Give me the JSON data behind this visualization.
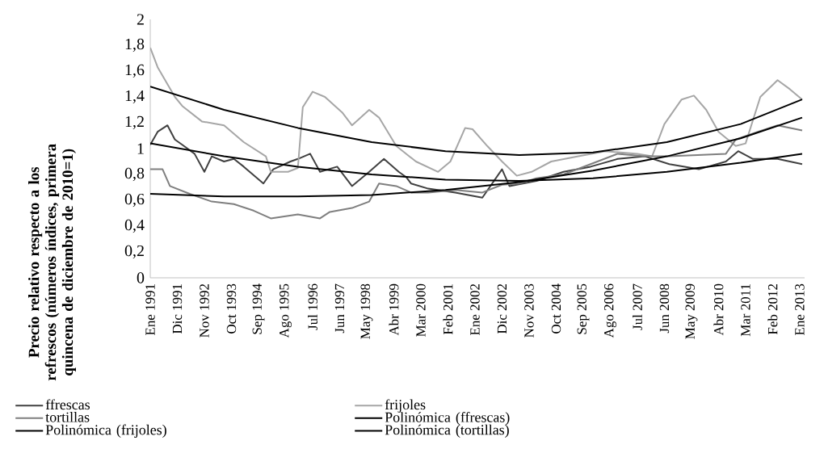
{
  "chart_data": {
    "type": "line",
    "ylabel": "Precio relativo respecto a los refrescos (números índices, primera quincena de diciembre de 2010=1)",
    "xlim": [
      "1991-01",
      "2013-03"
    ],
    "ylim": [
      0,
      2
    ],
    "yticks": [
      0,
      {
        "value": 0.2,
        "label": "0,2"
      },
      {
        "value": 0.4,
        "label": "0,4"
      },
      {
        "value": 0.6,
        "label": "0,6"
      },
      {
        "value": 0.8,
        "label": "0,8"
      },
      1,
      {
        "value": 1.2,
        "label": "1,2"
      },
      {
        "value": 1.4,
        "label": "1,4"
      },
      {
        "value": 1.6,
        "label": "1,6"
      },
      {
        "value": 1.8,
        "label": "1,8"
      },
      2
    ],
    "xticks": [
      {
        "value": "1991-01",
        "label": "Ene 1991"
      },
      {
        "value": "1991-12",
        "label": "Dic 1991"
      },
      {
        "value": "1992-11",
        "label": "Nov 1992"
      },
      {
        "value": "1993-10",
        "label": "Oct 1993"
      },
      {
        "value": "1994-09",
        "label": "Sep 1994"
      },
      {
        "value": "1995-08",
        "label": "Ago 1995"
      },
      {
        "value": "1996-07",
        "label": "Jul 1996"
      },
      {
        "value": "1997-06",
        "label": "Jun 1997"
      },
      {
        "value": "1998-05",
        "label": "May 1998"
      },
      {
        "value": "1999-04",
        "label": "Abr 1999"
      },
      {
        "value": "2000-03",
        "label": "Mar 2000"
      },
      {
        "value": "2001-02",
        "label": "Feb 2001"
      },
      {
        "value": "2002-01",
        "label": "Ene 2002"
      },
      {
        "value": "2002-12",
        "label": "Dic 2002"
      },
      {
        "value": "2003-11",
        "label": "Nov 2003"
      },
      {
        "value": "2004-10",
        "label": "Oct 2004"
      },
      {
        "value": "2005-09",
        "label": "Sep 2005"
      },
      {
        "value": "2006-08",
        "label": "Ago 2006"
      },
      {
        "value": "2007-07",
        "label": "Jul 2007"
      },
      {
        "value": "2008-06",
        "label": "Jun 2008"
      },
      {
        "value": "2009-05",
        "label": "May 2009"
      },
      {
        "value": "2010-04",
        "label": "Abr 2010"
      },
      {
        "value": "2011-03",
        "label": "Mar 2011"
      },
      {
        "value": "2012-02",
        "label": "Feb 2012"
      },
      {
        "value": "2013-01",
        "label": "Ene 2013"
      }
    ],
    "legend": "bottom",
    "marker": "none",
    "series": [
      {
        "name": "ffrescas",
        "color": "#404040",
        "x": [
          "1991-01",
          "1991-04",
          "1991-08",
          "1991-11",
          "1992-02",
          "1992-07",
          "1992-11",
          "1993-02",
          "1993-07",
          "1993-11",
          "1994-03",
          "1994-11",
          "1995-03",
          "1995-10",
          "1996-01",
          "1996-06",
          "1996-10",
          "1997-05",
          "1997-11",
          "1998-06",
          "1998-12",
          "1999-06",
          "1999-09",
          "1999-11",
          "2000-06",
          "2001-05",
          "2002-04",
          "2002-12",
          "2003-03",
          "2004-02",
          "2005-01",
          "2005-12",
          "2006-11",
          "2007-10",
          "2008-08",
          "2009-08",
          "2010-07",
          "2010-12",
          "2011-06",
          "2012-04",
          "2013-02"
        ],
        "values": [
          1.03,
          1.13,
          1.18,
          1.07,
          1.03,
          0.96,
          0.82,
          0.94,
          0.9,
          0.92,
          0.86,
          0.73,
          0.84,
          0.9,
          0.92,
          0.96,
          0.82,
          0.86,
          0.71,
          0.82,
          0.92,
          0.82,
          0.78,
          0.73,
          0.69,
          0.66,
          0.62,
          0.84,
          0.71,
          0.75,
          0.82,
          0.86,
          0.92,
          0.94,
          0.88,
          0.84,
          0.9,
          0.98,
          0.92,
          0.92,
          0.88
        ]
      },
      {
        "name": "frijoles",
        "color": "#a6a6a6",
        "x": [
          "1991-01",
          "1991-04",
          "1991-11",
          "1992-02",
          "1992-10",
          "1993-07",
          "1994-03",
          "1994-12",
          "1995-02",
          "1995-09",
          "1996-01",
          "1996-03",
          "1996-07",
          "1996-12",
          "1997-07",
          "1997-11",
          "1998-06",
          "1998-10",
          "1999-05",
          "2000-01",
          "2000-10",
          "2001-03",
          "2001-09",
          "2001-12",
          "2002-06",
          "2002-12",
          "2003-06",
          "2003-12",
          "2004-08",
          "2005-07",
          "2006-06",
          "2007-07",
          "2008-01",
          "2008-06",
          "2009-01",
          "2009-06",
          "2009-11",
          "2010-04",
          "2010-11",
          "2011-03",
          "2011-09",
          "2012-04",
          "2012-09",
          "2013-02"
        ],
        "values": [
          1.78,
          1.63,
          1.4,
          1.33,
          1.21,
          1.18,
          1.05,
          0.94,
          0.82,
          0.82,
          0.85,
          1.32,
          1.44,
          1.4,
          1.28,
          1.18,
          1.3,
          1.24,
          1.02,
          0.9,
          0.82,
          0.9,
          1.16,
          1.15,
          1.02,
          0.9,
          0.79,
          0.82,
          0.9,
          0.94,
          0.98,
          0.96,
          0.94,
          1.19,
          1.38,
          1.41,
          1.3,
          1.13,
          1.02,
          1.04,
          1.4,
          1.53,
          1.46,
          1.38
        ]
      },
      {
        "name": "tortillas",
        "color": "#7f7f7f",
        "x": [
          "1991-01",
          "1991-06",
          "1991-09",
          "1992-05",
          "1993-02",
          "1993-11",
          "1994-07",
          "1995-02",
          "1996-01",
          "1996-10",
          "1997-02",
          "1997-11",
          "1998-06",
          "1998-10",
          "1999-05",
          "1999-11",
          "2000-06",
          "2001-05",
          "2002-04",
          "2002-12",
          "2003-07",
          "2004-02",
          "2005-01",
          "2005-12",
          "2006-11",
          "2007-10",
          "2008-08",
          "2010-07",
          "2010-11",
          "2011-08",
          "2012-04",
          "2013-02"
        ],
        "values": [
          0.84,
          0.84,
          0.71,
          0.65,
          0.59,
          0.57,
          0.52,
          0.46,
          0.49,
          0.46,
          0.51,
          0.54,
          0.59,
          0.73,
          0.71,
          0.66,
          0.66,
          0.68,
          0.66,
          0.72,
          0.73,
          0.77,
          0.8,
          0.88,
          0.96,
          0.94,
          0.94,
          0.96,
          1.07,
          1.13,
          1.18,
          1.14
        ]
      },
      {
        "name": "Polinómica (ffrescas)",
        "color": "#000000",
        "x": [
          "1991-01",
          "1993-07",
          "1996-01",
          "1998-07",
          "2001-01",
          "2003-07",
          "2006-01",
          "2008-07",
          "2011-01",
          "2013-02"
        ],
        "values": [
          1.04,
          0.94,
          0.86,
          0.8,
          0.76,
          0.75,
          0.77,
          0.82,
          0.89,
          0.96
        ]
      },
      {
        "name": "Polinómica (frijoles)",
        "color": "#000000",
        "x": [
          "1991-01",
          "1993-07",
          "1996-01",
          "1998-07",
          "2001-01",
          "2003-07",
          "2006-01",
          "2008-07",
          "2011-01",
          "2013-02"
        ],
        "values": [
          1.48,
          1.3,
          1.16,
          1.05,
          0.98,
          0.95,
          0.97,
          1.05,
          1.19,
          1.38
        ]
      },
      {
        "name": "Polinómica (tortillas)",
        "color": "#000000",
        "x": [
          "1991-01",
          "1993-07",
          "1996-01",
          "1998-07",
          "2001-01",
          "2003-07",
          "2006-01",
          "2008-07",
          "2011-01",
          "2013-02"
        ],
        "values": [
          0.65,
          0.63,
          0.63,
          0.64,
          0.68,
          0.74,
          0.83,
          0.94,
          1.08,
          1.24
        ]
      }
    ]
  }
}
